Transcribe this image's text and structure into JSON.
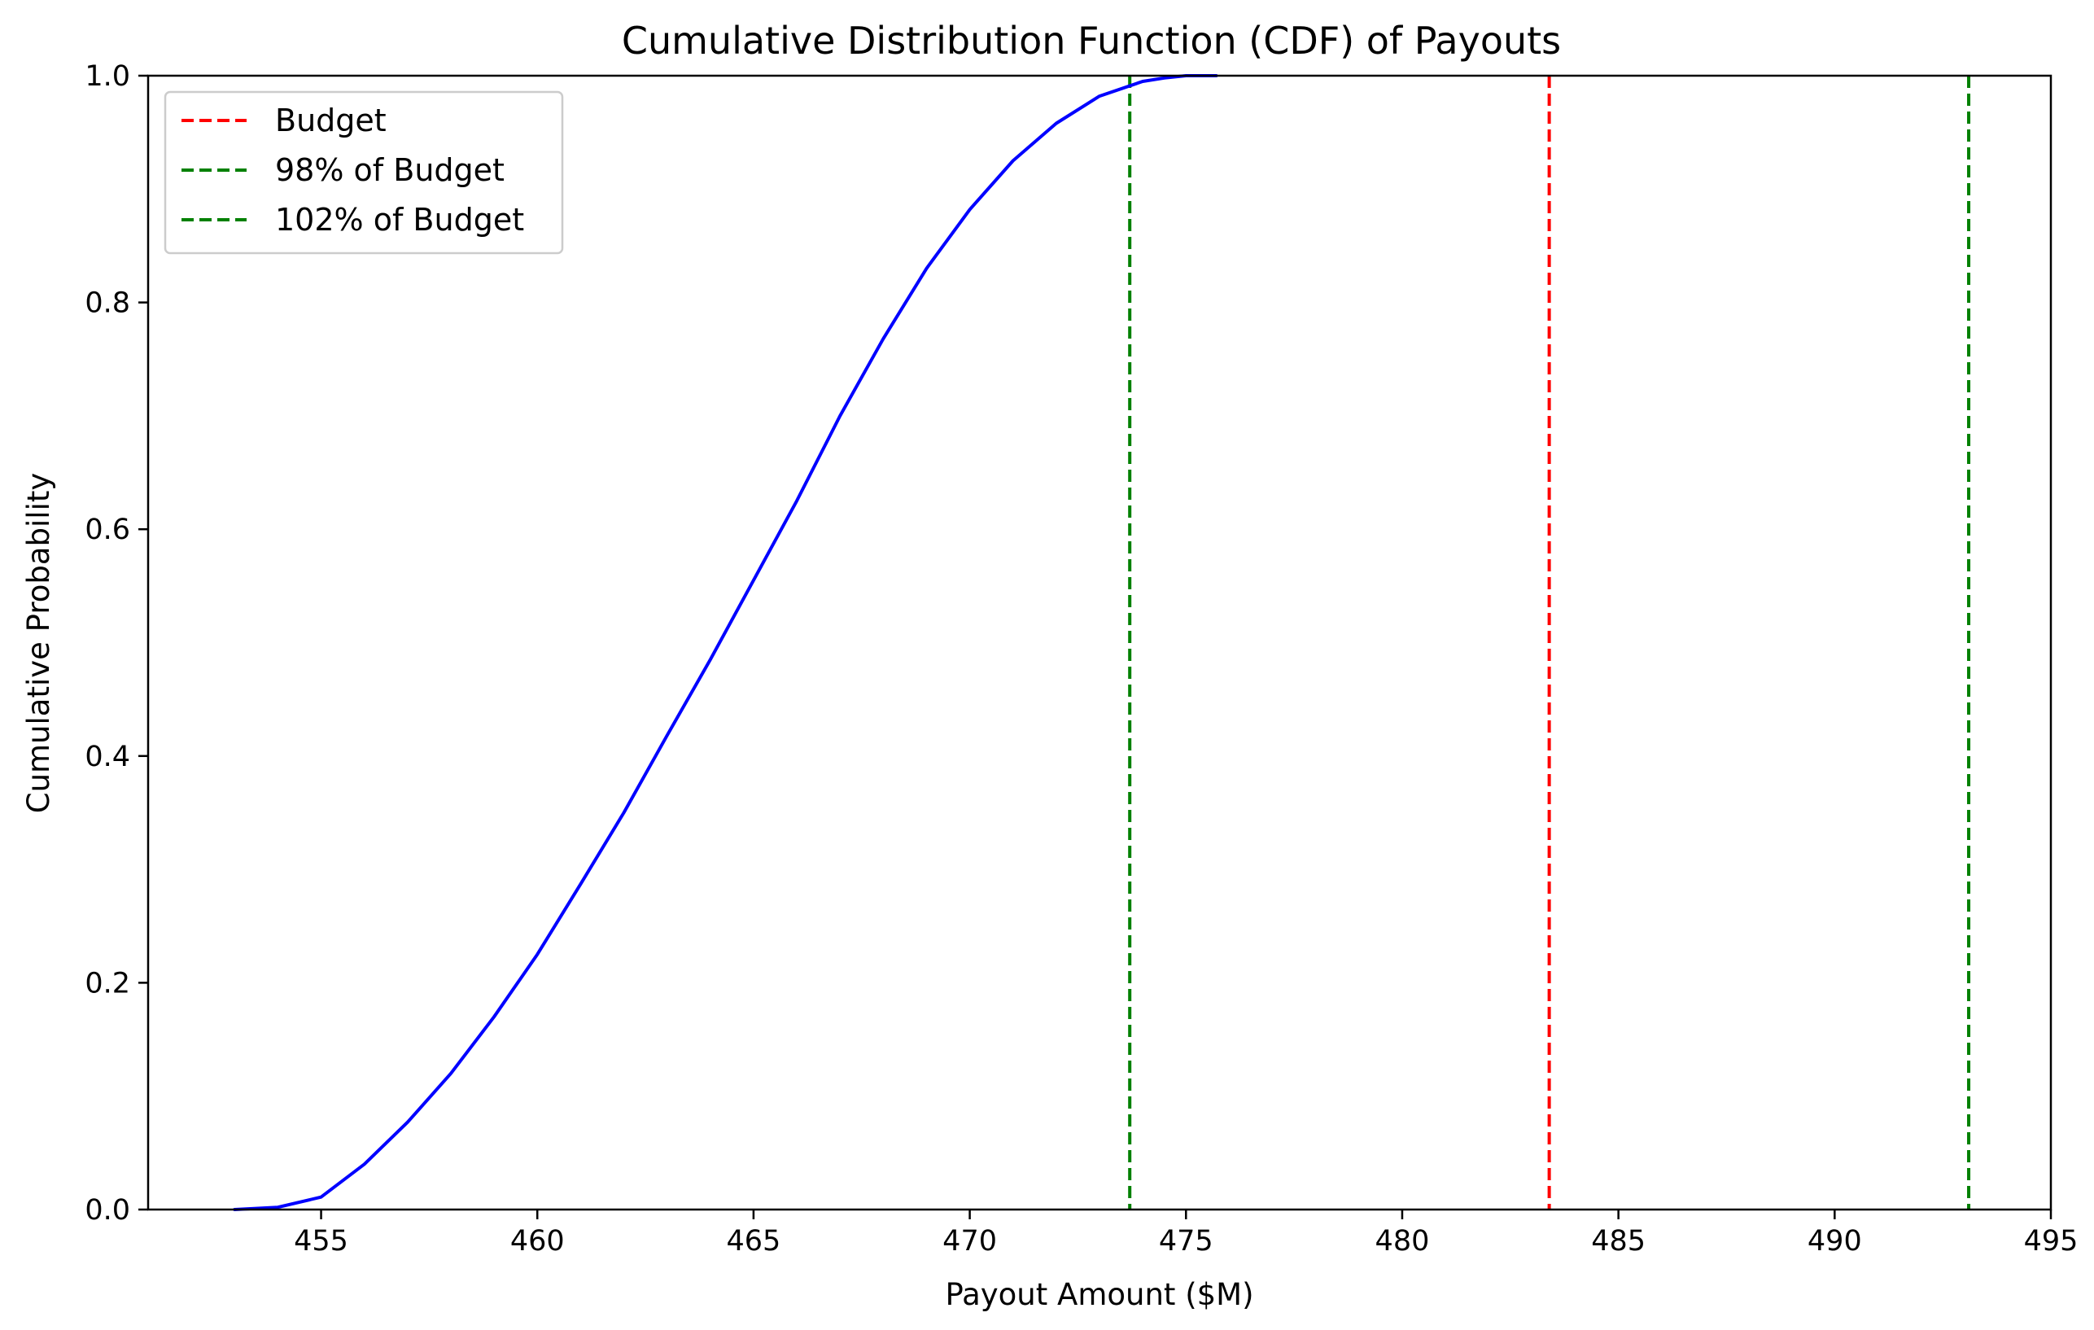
{
  "chart_data": {
    "type": "line",
    "title": "Cumulative Distribution Function (CDF) of Payouts",
    "xlabel": "Payout Amount ($M)",
    "ylabel": "Cumulative Probability",
    "xlim": [
      451,
      495
    ],
    "ylim": [
      0,
      1
    ],
    "xticks": [
      455,
      460,
      465,
      470,
      475,
      480,
      485,
      490,
      495
    ],
    "yticks": [
      0.0,
      0.2,
      0.4,
      0.6,
      0.8,
      1.0
    ],
    "ytick_labels": [
      "0.0",
      "0.2",
      "0.4",
      "0.6",
      "0.8",
      "1.0"
    ],
    "grid": false,
    "legend_position": "upper-left",
    "series": [
      {
        "color": "#0000ff",
        "style": "solid",
        "x": [
          453.0,
          454.0,
          455.0,
          456.0,
          457.0,
          458.0,
          459.0,
          460.0,
          461.0,
          462.0,
          463.0,
          464.0,
          465.0,
          466.0,
          467.0,
          468.0,
          469.0,
          470.0,
          471.0,
          472.0,
          473.0,
          474.0,
          474.5,
          475.0,
          475.7
        ],
        "y": [
          0.0,
          0.002,
          0.011,
          0.04,
          0.077,
          0.12,
          0.17,
          0.225,
          0.287,
          0.35,
          0.418,
          0.485,
          0.555,
          0.625,
          0.7,
          0.768,
          0.83,
          0.882,
          0.925,
          0.958,
          0.982,
          0.995,
          0.998,
          1.0,
          1.0
        ]
      }
    ],
    "vlines": [
      {
        "name": "Budget",
        "x": 483.4,
        "color": "#ff0000",
        "style": "dashed"
      },
      {
        "name": "98% of Budget",
        "x": 473.7,
        "color": "#008000",
        "style": "dashed"
      },
      {
        "name": "102% of Budget",
        "x": 493.1,
        "color": "#008000",
        "style": "dashed"
      }
    ]
  }
}
